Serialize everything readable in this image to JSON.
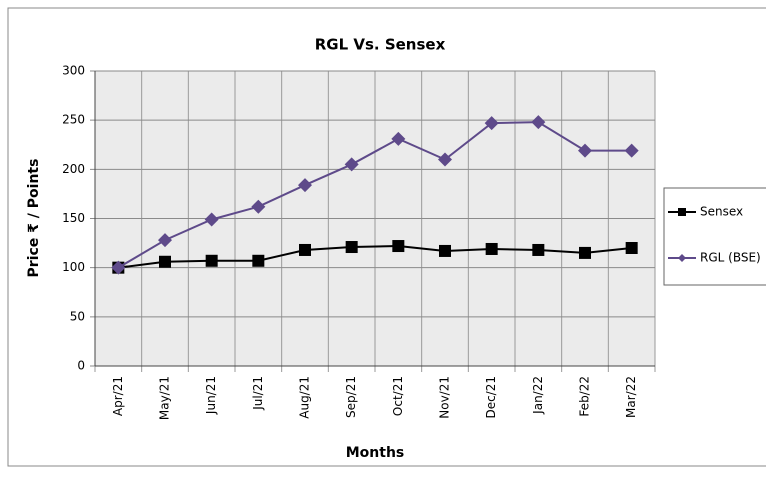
{
  "chart_data": {
    "type": "line",
    "title": "RGL Vs. Sensex",
    "x_label": "Months",
    "y_label": "Price ₹ / Points",
    "categories": [
      "Apr/21",
      "May/21",
      "Jun/21",
      "Jul/21",
      "Aug/21",
      "Sep/21",
      "Oct/21",
      "Nov/21",
      "Dec/21",
      "Jan/22",
      "Feb/22",
      "Mar/22"
    ],
    "series": [
      {
        "name": "Sensex",
        "color": "#000000",
        "marker": "square",
        "values": [
          100,
          106,
          107,
          107,
          118,
          121,
          122,
          117,
          119,
          118,
          115,
          120
        ]
      },
      {
        "name": "RGL (BSE)",
        "color": "#5e4a8a",
        "marker": "diamond",
        "values": [
          100,
          128,
          149,
          162,
          184,
          205,
          231,
          210,
          247,
          248,
          219,
          219
        ]
      }
    ],
    "ylim": [
      0,
      300
    ],
    "yticks": [
      0,
      50,
      100,
      150,
      200,
      250,
      300
    ],
    "grid": true,
    "legend": "right"
  }
}
